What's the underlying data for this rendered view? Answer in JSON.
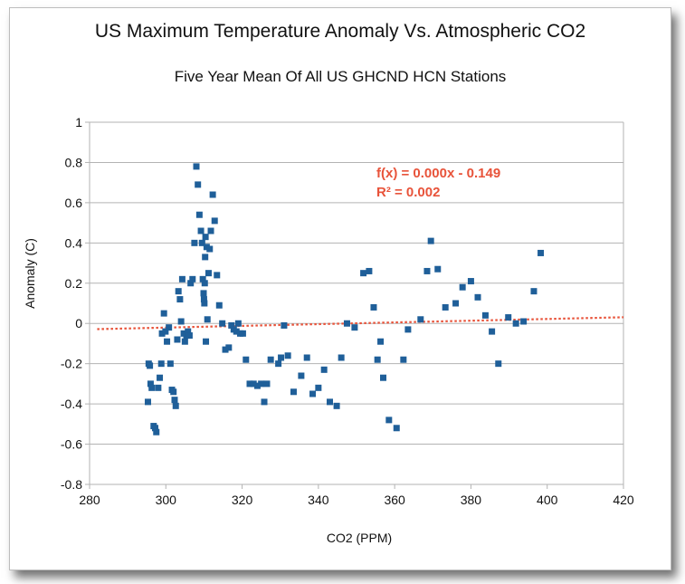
{
  "chart_data": {
    "type": "scatter",
    "title": "US Maximum Temperature Anomaly Vs. Atmospheric CO2",
    "subtitle": "Five Year Mean Of All US GHCND HCN Stations",
    "xlabel": "CO2 (PPM)",
    "ylabel": "Anomaly (C)",
    "xlim": [
      280,
      420
    ],
    "ylim": [
      -0.8,
      1
    ],
    "xticks": [
      "280",
      "300",
      "320",
      "340",
      "360",
      "380",
      "400",
      "420"
    ],
    "yticks": [
      "1",
      "0.8",
      "0.6",
      "0.4",
      "0.2",
      "0",
      "-0.2",
      "-0.4",
      "-0.6",
      "-0.8"
    ],
    "grid": "horizontal",
    "trendline": {
      "slope": 0.000428,
      "intercept": -0.149,
      "color": "#e8533a",
      "equation": "f(x) = 0.000x - 0.149",
      "r2": "R² = 0.002"
    },
    "series": [
      {
        "color": "#1f5f99",
        "points": [
          [
            295.3,
            -0.39
          ],
          [
            295.5,
            -0.2
          ],
          [
            295.8,
            -0.21
          ],
          [
            296.0,
            -0.3
          ],
          [
            296.3,
            -0.32
          ],
          [
            296.8,
            -0.51
          ],
          [
            297.2,
            -0.52
          ],
          [
            297.5,
            -0.54
          ],
          [
            298.0,
            -0.32
          ],
          [
            298.4,
            -0.27
          ],
          [
            298.8,
            -0.2
          ],
          [
            299.0,
            -0.05
          ],
          [
            299.5,
            0.05
          ],
          [
            299.9,
            -0.04
          ],
          [
            300.3,
            -0.09
          ],
          [
            300.8,
            -0.02
          ],
          [
            301.2,
            -0.2
          ],
          [
            301.6,
            -0.33
          ],
          [
            302.0,
            -0.34
          ],
          [
            302.3,
            -0.38
          ],
          [
            302.6,
            -0.41
          ],
          [
            303.0,
            -0.08
          ],
          [
            303.3,
            0.16
          ],
          [
            303.7,
            0.12
          ],
          [
            304.0,
            0.01
          ],
          [
            304.3,
            0.22
          ],
          [
            304.7,
            -0.05
          ],
          [
            305.0,
            -0.09
          ],
          [
            305.4,
            -0.06
          ],
          [
            305.8,
            -0.04
          ],
          [
            306.2,
            -0.06
          ],
          [
            306.5,
            0.2
          ],
          [
            307.0,
            0.22
          ],
          [
            307.5,
            0.4
          ],
          [
            308.0,
            0.78
          ],
          [
            308.4,
            0.69
          ],
          [
            308.8,
            0.54
          ],
          [
            309.2,
            0.46
          ],
          [
            309.5,
            0.4
          ],
          [
            309.7,
            0.22
          ],
          [
            309.9,
            0.15
          ],
          [
            310.0,
            0.12
          ],
          [
            310.1,
            0.1
          ],
          [
            310.2,
            0.2
          ],
          [
            310.3,
            0.33
          ],
          [
            310.4,
            0.43
          ],
          [
            310.5,
            -0.09
          ],
          [
            310.7,
            0.38
          ],
          [
            310.9,
            0.02
          ],
          [
            311.2,
            0.25
          ],
          [
            311.5,
            0.37
          ],
          [
            311.8,
            0.46
          ],
          [
            312.3,
            0.64
          ],
          [
            312.8,
            0.51
          ],
          [
            313.4,
            0.24
          ],
          [
            314.0,
            0.09
          ],
          [
            314.8,
            0.0
          ],
          [
            315.6,
            -0.13
          ],
          [
            316.5,
            -0.12
          ],
          [
            317.2,
            -0.01
          ],
          [
            317.8,
            -0.03
          ],
          [
            318.5,
            -0.04
          ],
          [
            319.0,
            0.0
          ],
          [
            319.5,
            -0.05
          ],
          [
            320.2,
            -0.05
          ],
          [
            321.0,
            -0.18
          ],
          [
            322.0,
            -0.3
          ],
          [
            323.0,
            -0.3
          ],
          [
            324.0,
            -0.31
          ],
          [
            325.0,
            -0.3
          ],
          [
            325.8,
            -0.39
          ],
          [
            326.5,
            -0.3
          ],
          [
            327.5,
            -0.18
          ],
          [
            329.5,
            -0.2
          ],
          [
            330.2,
            -0.17
          ],
          [
            331.0,
            -0.01
          ],
          [
            332.0,
            -0.16
          ],
          [
            333.5,
            -0.34
          ],
          [
            335.5,
            -0.26
          ],
          [
            337.0,
            -0.17
          ],
          [
            338.5,
            -0.35
          ],
          [
            340.0,
            -0.32
          ],
          [
            341.5,
            -0.23
          ],
          [
            343.0,
            -0.39
          ],
          [
            344.8,
            -0.41
          ],
          [
            346.0,
            -0.17
          ],
          [
            347.5,
            0.0
          ],
          [
            349.5,
            -0.02
          ],
          [
            351.8,
            0.25
          ],
          [
            353.3,
            0.26
          ],
          [
            354.5,
            0.08
          ],
          [
            355.5,
            -0.18
          ],
          [
            356.3,
            -0.09
          ],
          [
            357.0,
            -0.27
          ],
          [
            358.5,
            -0.48
          ],
          [
            360.5,
            -0.52
          ],
          [
            362.3,
            -0.18
          ],
          [
            363.5,
            -0.03
          ],
          [
            366.8,
            0.02
          ],
          [
            368.5,
            0.26
          ],
          [
            369.5,
            0.41
          ],
          [
            371.3,
            0.27
          ],
          [
            373.3,
            0.08
          ],
          [
            376.0,
            0.1
          ],
          [
            377.8,
            0.18
          ],
          [
            380.0,
            0.21
          ],
          [
            381.8,
            0.13
          ],
          [
            383.8,
            0.04
          ],
          [
            385.5,
            -0.04
          ],
          [
            387.2,
            -0.2
          ],
          [
            389.8,
            0.03
          ],
          [
            391.8,
            0.0
          ],
          [
            393.8,
            0.01
          ],
          [
            396.5,
            0.16
          ],
          [
            398.3,
            0.35
          ]
        ]
      }
    ]
  }
}
